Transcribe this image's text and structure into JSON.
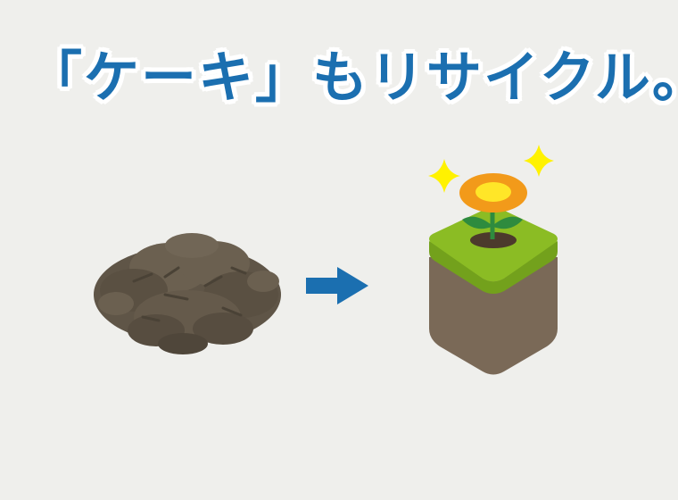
{
  "headline": "「ケーキ」もリサイクル。",
  "icons": {
    "compost": "compost-pile-icon",
    "arrow": "arrow-right-icon",
    "soil_block": "soil-block-icon",
    "flower": "flower-icon",
    "sparkles": "sparkle-icon"
  },
  "colors": {
    "headline": "#1b6fb0",
    "arrow": "#1b6fb0",
    "grass": "#8bbc24",
    "soil": "#7a6957",
    "petal": "#f29a1a",
    "flower_center": "#ffe628",
    "sparkle": "#fff200",
    "compost": "#5f5547"
  }
}
